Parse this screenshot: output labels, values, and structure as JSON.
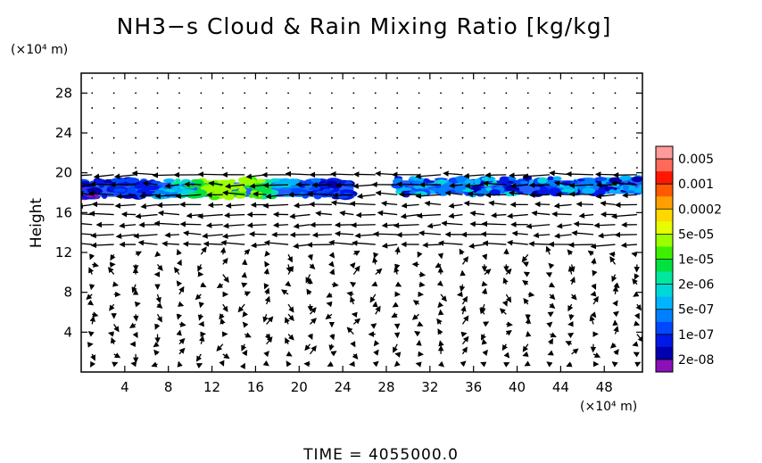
{
  "chart_data": {
    "type": "heatmap",
    "title": "NH3−s Cloud & Rain Mixing Ratio [kg/kg]",
    "ylabel": "Height",
    "y_unit": "(×10⁴ m)",
    "x_unit": "(×10⁴ m)",
    "xlim": [
      0,
      51.5
    ],
    "ylim": [
      0,
      30
    ],
    "xticks": [
      "4",
      "8",
      "12",
      "16",
      "20",
      "24",
      "28",
      "32",
      "36",
      "40",
      "44",
      "48"
    ],
    "yticks": [
      "4",
      "8",
      "12",
      "16",
      "20",
      "24",
      "28"
    ],
    "colorbar": {
      "labels": [
        "0.005",
        "0.001",
        "0.0002",
        "5e-05",
        "1e-05",
        "2e-06",
        "5e-07",
        "1e-07",
        "2e-08"
      ],
      "colors": [
        "#ff9a9a",
        "#ff6a5a",
        "#ff1800",
        "#ff5a00",
        "#ffa000",
        "#ffd800",
        "#e6ff00",
        "#9cff00",
        "#3cf000",
        "#00e040",
        "#00e8a0",
        "#00d8d8",
        "#00b4ff",
        "#0080ff",
        "#0048ff",
        "#0018e8",
        "#0000b0",
        "#8a10b8"
      ]
    },
    "cloud_regions": [
      {
        "x": [
          0,
          25
        ],
        "y": [
          17.5,
          19.3
        ],
        "peak": "1e-05"
      },
      {
        "x": [
          29,
          51.5
        ],
        "y": [
          17.8,
          19.5
        ],
        "peak": "5e-07"
      }
    ],
    "wind_vectors": {
      "grid_dx": 2,
      "grid_dy": 1,
      "upper_jet": {
        "height": [
          12,
          20
        ],
        "direction": "westward"
      },
      "lower_layer": {
        "height": [
          0,
          12
        ],
        "direction": "mixed"
      }
    },
    "time_label": "TIME  =  4055000.0"
  }
}
